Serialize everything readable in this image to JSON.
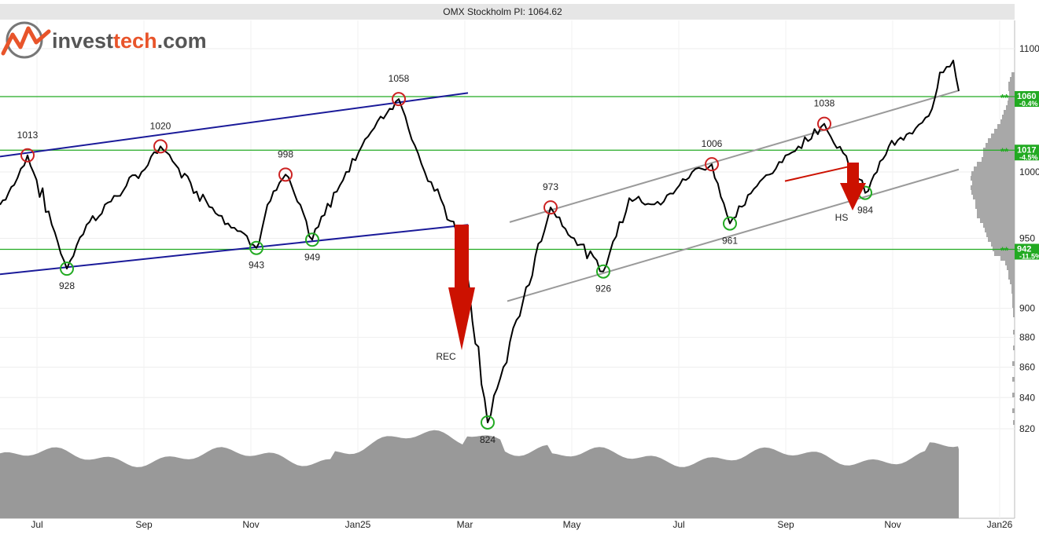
{
  "header": {
    "title": "OMX Stockholm PI: 1064.62"
  },
  "brand": {
    "name_prefix": "invest",
    "name_accent": "tech",
    "name_suffix": ".com",
    "accent_color": "#e8542a",
    "text_color": "#555555"
  },
  "colors": {
    "price": "#000000",
    "horizontal_level": "#22aa22",
    "trend_blue": "#1a1a99",
    "trend_gray": "#9a9a9a",
    "top_marker": "#cc2222",
    "bottom_marker": "#22aa22",
    "signal_arrow": "#cc1100",
    "volume": "#999999",
    "label_badge": "#22aa22"
  },
  "chart_data": {
    "type": "line",
    "title": "OMX Stockholm PI: 1064.62",
    "yticks": [
      1100,
      1000,
      950,
      900,
      880,
      860,
      840,
      820
    ],
    "xticks": [
      "Jul",
      "Sep",
      "Nov",
      "Jan25",
      "Mar",
      "May",
      "Jul",
      "Sep",
      "Nov",
      "Jan26"
    ],
    "y_scale": "log",
    "grid": true,
    "series": [
      {
        "x": [
          "Jun 2024",
          "Jun 2024",
          "Jul 2024",
          "Aug 2024",
          "Aug 2024",
          "Sep 2024",
          "Sep 2024",
          "Oct 2024",
          "Nov 2024",
          "Nov 2024",
          "Dec 2024",
          "Dec 2024",
          "Jan 2025",
          "Feb 2025",
          "Feb 2025",
          "Mar 2025",
          "Mar 2025",
          "Apr 2025",
          "Apr 2025",
          "Apr 2025",
          "May 2025",
          "May 2025",
          "Jun 2025",
          "Jun 2025",
          "Jul 2025",
          "Aug 2025",
          "Aug 2025",
          "Sep 2025",
          "Sep 2025",
          "Oct 2025",
          "Oct 2025",
          "Nov 2025",
          "Nov 2025",
          "Dec 2025",
          "Dec 2025",
          "Jan 2026",
          "Jan 2026",
          "Jan 2026"
        ],
        "values": [
          975,
          990,
          1013,
          928,
          960,
          1000,
          1020,
          985,
          943,
          975,
          998,
          949,
          1000,
          1040,
          1058,
          1000,
          950,
          824,
          860,
          905,
          973,
          950,
          926,
          980,
          975,
          1000,
          1006,
          961,
          995,
          1020,
          1038,
          984,
          1020,
          1030,
          1050,
          1080,
          1090,
          1064.62
        ]
      }
    ],
    "support_resistance_levels": [
      {
        "value": 1060,
        "badge": "1060",
        "change": "-0.4%"
      },
      {
        "value": 1017,
        "badge": "1017",
        "change": "-4.5%"
      },
      {
        "value": 942,
        "badge": "942",
        "change": "-11.5%"
      }
    ],
    "tops": [
      {
        "value": 1013,
        "label": "1013"
      },
      {
        "value": 1020,
        "label": "1020"
      },
      {
        "value": 998,
        "label": "998"
      },
      {
        "value": 1058,
        "label": "1058"
      },
      {
        "value": 973,
        "label": "973"
      },
      {
        "value": 1006,
        "label": "1006"
      },
      {
        "value": 1038,
        "label": "1038"
      }
    ],
    "bottoms": [
      {
        "value": 928,
        "label": "928"
      },
      {
        "value": 943,
        "label": "943"
      },
      {
        "value": 949,
        "label": "949"
      },
      {
        "value": 824,
        "label": "824"
      },
      {
        "value": 926,
        "label": "926"
      },
      {
        "value": 961,
        "label": "961"
      },
      {
        "value": 984,
        "label": "984"
      }
    ],
    "signals": [
      {
        "label": "REC"
      },
      {
        "label": "HS"
      }
    ],
    "level_marker": "**"
  }
}
